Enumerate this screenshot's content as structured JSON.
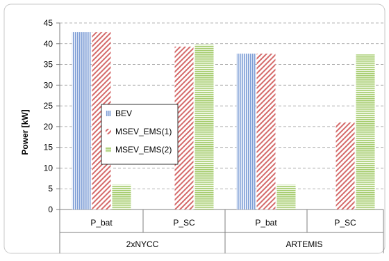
{
  "chart_data": {
    "type": "bar",
    "title": "",
    "ylabel": "Power [kW]",
    "ylim": [
      0,
      45
    ],
    "yticks": [
      "0",
      "5",
      "10",
      "15",
      "20",
      "25",
      "30",
      "35",
      "40",
      "45"
    ],
    "grid": "horizontal dashed",
    "legend_position": "center-left",
    "categories": [
      {
        "label": "P_bat",
        "group": "2xNYCC"
      },
      {
        "label": "P_SC",
        "group": "2xNYCC"
      },
      {
        "label": "P_bat",
        "group": "ARTEMIS"
      },
      {
        "label": "P_SC",
        "group": "ARTEMIS"
      }
    ],
    "groups": [
      "2xNYCC",
      "ARTEMIS"
    ],
    "series": [
      {
        "name": "BEV",
        "color": "#7f9fd6",
        "pattern": "vertical",
        "values": [
          42.8,
          0,
          37.6,
          0
        ]
      },
      {
        "name": "MSEV_EMS(1)",
        "color": "#d46a6a",
        "pattern": "diagonal",
        "values": [
          42.8,
          39.3,
          37.6,
          21.0
        ]
      },
      {
        "name": "MSEV_EMS(2)",
        "color": "#a6cc6e",
        "pattern": "horizontal",
        "values": [
          6.0,
          39.8,
          6.0,
          37.4
        ]
      }
    ]
  }
}
